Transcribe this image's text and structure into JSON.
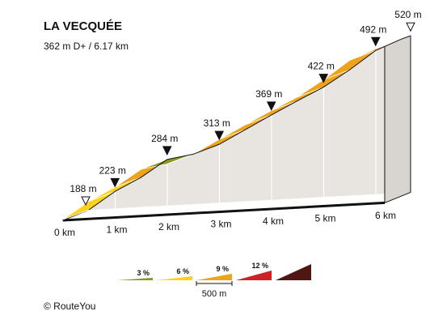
{
  "title": "LA VECQUÉE",
  "subtitle": "362 m D+ / 6.17 km",
  "copyright": "© RouteYou",
  "chart_data": {
    "type": "area",
    "chart_kind": "elevation-profile",
    "x_unit": "km",
    "y_unit": "m",
    "total_distance_km": 6.17,
    "elevation_gain_m": 362,
    "profile": [
      {
        "km": 0.0,
        "elev": 188
      },
      {
        "km": 0.5,
        "elev": 223
      },
      {
        "km": 1.0,
        "elev": 250
      },
      {
        "km": 1.5,
        "elev": 284
      },
      {
        "km": 2.0,
        "elev": 294
      },
      {
        "km": 2.5,
        "elev": 313
      },
      {
        "km": 3.0,
        "elev": 341
      },
      {
        "km": 3.5,
        "elev": 369
      },
      {
        "km": 4.0,
        "elev": 396
      },
      {
        "km": 4.5,
        "elev": 422
      },
      {
        "km": 5.0,
        "elev": 455
      },
      {
        "km": 5.5,
        "elev": 492
      },
      {
        "km": 6.0,
        "elev": 514
      },
      {
        "km": 6.17,
        "elev": 520
      }
    ],
    "segment_classes": [
      "4",
      "4",
      "5",
      "3",
      "5",
      "5",
      "5",
      "5",
      "5",
      "5",
      "5",
      "5",
      "2"
    ],
    "elevation_markers": [
      {
        "km": 0.0,
        "label": "188 m",
        "marker": "open"
      },
      {
        "km": 0.5,
        "label": "223 m",
        "marker": "filled"
      },
      {
        "km": 1.5,
        "label": "284 m",
        "marker": "filled"
      },
      {
        "km": 2.5,
        "label": "313 m",
        "marker": "filled"
      },
      {
        "km": 3.5,
        "label": "369 m",
        "marker": "filled"
      },
      {
        "km": 4.5,
        "label": "422 m",
        "marker": "filled"
      },
      {
        "km": 5.5,
        "label": "492 m",
        "marker": "filled"
      },
      {
        "km": 6.17,
        "label": "520 m",
        "marker": "open"
      }
    ],
    "km_ticks": [
      {
        "km": 0,
        "label": "0 km"
      },
      {
        "km": 1,
        "label": "1 km"
      },
      {
        "km": 2,
        "label": "2 km"
      },
      {
        "km": 3,
        "label": "3 km"
      },
      {
        "km": 4,
        "label": "4 km"
      },
      {
        "km": 5,
        "label": "5 km"
      },
      {
        "km": 6,
        "label": "6 km"
      }
    ],
    "legend": {
      "scale_label": "500 m",
      "items": [
        {
          "label": "3 %",
          "color": "#7b9a1e"
        },
        {
          "label": "6 %",
          "color": "#ffd21a"
        },
        {
          "label": "9 %",
          "color": "#f0a218"
        },
        {
          "label": "12 %",
          "color": "#cc2127"
        },
        {
          "label": "",
          "color": "#4e1714"
        }
      ]
    }
  },
  "colors": {
    "top_face_classes": {
      "2": "#8a9a1f",
      "3": "#8a9a1f",
      "4": "#ffd21a",
      "5": "#f0a218"
    },
    "side_face": "#e8e4e0",
    "front_face": "#c8c8c8",
    "outline": "#111111"
  }
}
